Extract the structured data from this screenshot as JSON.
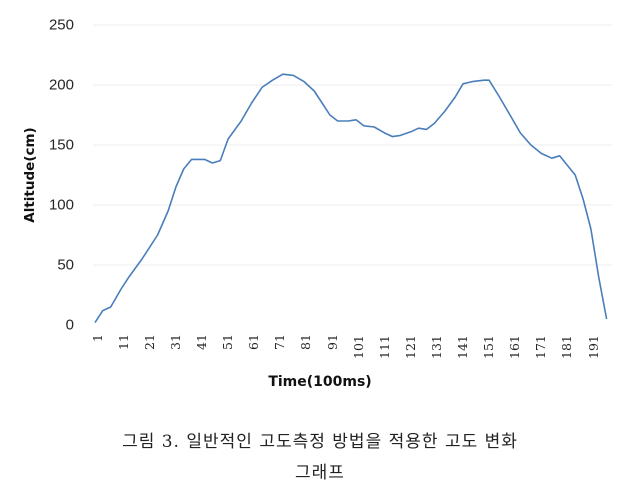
{
  "chart_data": {
    "type": "line",
    "title": "",
    "xlabel": "Time(100ms)",
    "ylabel": "Altitude(cm)",
    "ylim": [
      0,
      250
    ],
    "xlim": [
      0,
      197
    ],
    "grid": true,
    "legend": null,
    "y_ticks": [
      "0",
      "50",
      "100",
      "150",
      "200",
      "250"
    ],
    "x_ticks": [
      "1",
      "11",
      "21",
      "31",
      "41",
      "51",
      "61",
      "71",
      "81",
      "91",
      "101",
      "111",
      "121",
      "131",
      "141",
      "151",
      "161",
      "171",
      "181",
      "191"
    ],
    "line_color": "#4a7ebb",
    "series": [
      {
        "name": "Altitude",
        "x": [
          0,
          3,
          6,
          10,
          13,
          18,
          24,
          28,
          31,
          34,
          37,
          42,
          45,
          48,
          51,
          56,
          60,
          64,
          68,
          72,
          76,
          80,
          84,
          87,
          90,
          93,
          97,
          100,
          103,
          107,
          111,
          114,
          117,
          121,
          124,
          127,
          130,
          134,
          138,
          141,
          145,
          149,
          151,
          155,
          159,
          163,
          167,
          171,
          175,
          178,
          181,
          184,
          187,
          190,
          193,
          196
        ],
        "values": [
          2,
          12,
          15,
          30,
          40,
          55,
          75,
          95,
          115,
          130,
          138,
          138,
          135,
          137,
          155,
          170,
          185,
          198,
          204,
          209,
          208,
          203,
          195,
          185,
          175,
          170,
          170,
          171,
          166,
          165,
          160,
          157,
          158,
          161,
          164,
          163,
          168,
          178,
          190,
          201,
          203,
          204,
          204,
          190,
          175,
          160,
          150,
          143,
          139,
          141,
          133,
          125,
          105,
          80,
          40,
          5
        ]
      }
    ]
  },
  "caption": {
    "line1": "그림 3. 일반적인 고도측정 방법을 적용한 고도 변화",
    "line2": "그래프"
  }
}
